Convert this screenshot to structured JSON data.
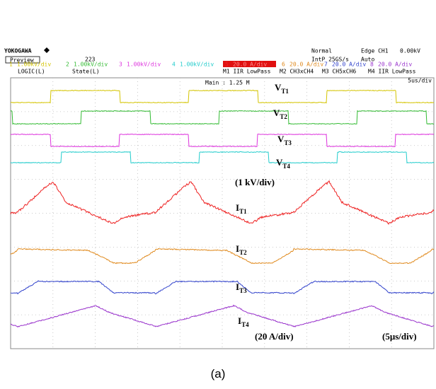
{
  "header": {
    "brand": "YOKOGAWA",
    "mode": "Preview",
    "count": "223",
    "logic": "LOGIC(L)",
    "state": "State(L)",
    "trigger_mode": "Normal",
    "sample_rate": "IntP 25GS/s",
    "trigger": "Edge CH1",
    "trigger_level": "0.00kV",
    "trigger_auto": "Auto",
    "timebase": "5us/div",
    "record": "Main : 1.25 M"
  },
  "channels": [
    {
      "number": "1",
      "label": "1.00kV/div"
    },
    {
      "number": "2",
      "label": "1.00kV/div"
    },
    {
      "number": "3",
      "label": "1.00kV/div"
    },
    {
      "number": "4",
      "label": "1.00kV/div"
    },
    {
      "number": "5",
      "label": "20.0 A/div"
    },
    {
      "number": "6",
      "label": "20.0 A/div"
    },
    {
      "number": "7",
      "label": "20.0 A/div"
    },
    {
      "number": "8",
      "label": "20.0 A/div"
    }
  ],
  "math": [
    "M1 IIR LowPass",
    "M2 CH3xCH4",
    "M3 CH5xCH6",
    "M4 IIR LowPass"
  ],
  "annotations": [
    {
      "label": "V",
      "sub": "T1"
    },
    {
      "label": "V",
      "sub": "T2"
    },
    {
      "label": "V",
      "sub": "T3"
    },
    {
      "label": "V",
      "sub": "T4"
    },
    {
      "label": "I",
      "sub": "T1"
    },
    {
      "label": "I",
      "sub": "T2"
    },
    {
      "label": "I",
      "sub": "T3"
    },
    {
      "label": "I",
      "sub": "T4"
    }
  ],
  "scales": [
    "(1 kV/div)",
    "(20 A/div)",
    "(5μs/div)"
  ],
  "caption": "(a)"
}
